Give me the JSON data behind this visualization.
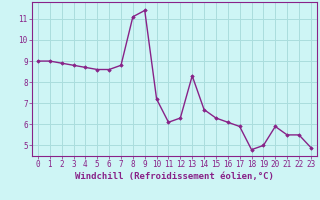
{
  "x": [
    0,
    1,
    2,
    3,
    4,
    5,
    6,
    7,
    8,
    9,
    10,
    11,
    12,
    13,
    14,
    15,
    16,
    17,
    18,
    19,
    20,
    21,
    22,
    23
  ],
  "y": [
    9.0,
    9.0,
    8.9,
    8.8,
    8.7,
    8.6,
    8.6,
    8.8,
    11.1,
    11.4,
    7.2,
    6.1,
    6.3,
    8.3,
    6.7,
    6.3,
    6.1,
    5.9,
    4.8,
    5.0,
    5.9,
    5.5,
    5.5,
    4.9
  ],
  "line_color": "#882288",
  "marker": "D",
  "marker_size": 1.8,
  "bg_color": "#cef5f5",
  "grid_color": "#aadddd",
  "xlabel": "Windchill (Refroidissement éolien,°C)",
  "xlim": [
    -0.5,
    23.5
  ],
  "ylim": [
    4.5,
    11.8
  ],
  "yticks": [
    5,
    6,
    7,
    8,
    9,
    10,
    11
  ],
  "xticks": [
    0,
    1,
    2,
    3,
    4,
    5,
    6,
    7,
    8,
    9,
    10,
    11,
    12,
    13,
    14,
    15,
    16,
    17,
    18,
    19,
    20,
    21,
    22,
    23
  ],
  "tick_color": "#882288",
  "tick_label_fontsize": 5.5,
  "xlabel_fontsize": 6.5,
  "linewidth": 1.0
}
